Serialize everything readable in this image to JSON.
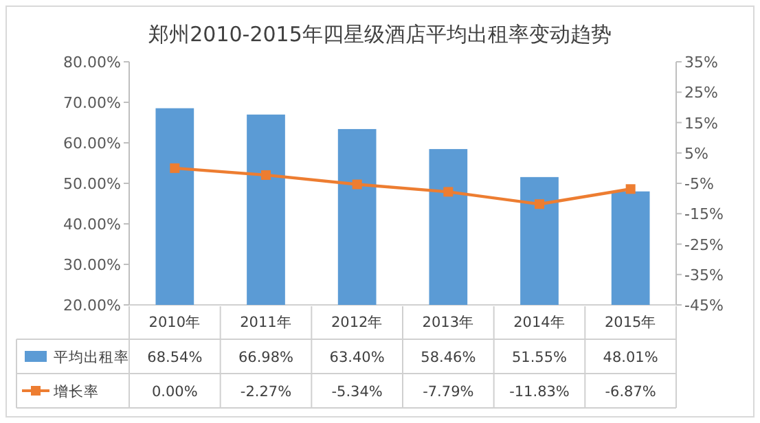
{
  "chart_data": {
    "type": "bar",
    "title": "郑州2010-2015年四星级酒店平均出租率变动趋势",
    "categories": [
      "2010年",
      "2011年",
      "2012年",
      "2013年",
      "2014年",
      "2015年"
    ],
    "series": [
      {
        "name": "平均出租率",
        "type": "bar",
        "color": "#5b9bd5",
        "values": [
          68.54,
          66.98,
          63.4,
          58.46,
          51.55,
          48.01
        ],
        "value_labels": [
          "68.54%",
          "66.98%",
          "63.40%",
          "58.46%",
          "51.55%",
          "48.01%"
        ]
      },
      {
        "name": "增长率",
        "type": "line",
        "axis": "y2",
        "color": "#ed7d31",
        "marker": "square",
        "line_style": "solid",
        "values": [
          0.0,
          -2.27,
          -5.34,
          -7.79,
          -11.83,
          -6.87
        ],
        "value_labels": [
          "0.00%",
          "-2.27%",
          "-5.34%",
          "-7.79%",
          "-11.83%",
          "-6.87%"
        ]
      }
    ],
    "ylim": [
      20,
      80
    ],
    "yticks": [
      {
        "value": 20,
        "label": "20.00%"
      },
      {
        "value": 30,
        "label": "30.00%"
      },
      {
        "value": 40,
        "label": "40.00%"
      },
      {
        "value": 50,
        "label": "50.00%"
      },
      {
        "value": 60,
        "label": "60.00%"
      },
      {
        "value": 70,
        "label": "70.00%"
      },
      {
        "value": 80,
        "label": "80.00%"
      }
    ],
    "y2lim": [
      -45,
      35
    ],
    "y2ticks": [
      {
        "value": -45,
        "label": "-45%"
      },
      {
        "value": -35,
        "label": "-35%"
      },
      {
        "value": -25,
        "label": "-25%"
      },
      {
        "value": -15,
        "label": "-15%"
      },
      {
        "value": -5,
        "label": "-5%"
      },
      {
        "value": 5,
        "label": "5%"
      },
      {
        "value": 15,
        "label": "15%"
      },
      {
        "value": 25,
        "label": "25%"
      },
      {
        "value": 35,
        "label": "35%"
      }
    ],
    "legend": "bottom"
  }
}
